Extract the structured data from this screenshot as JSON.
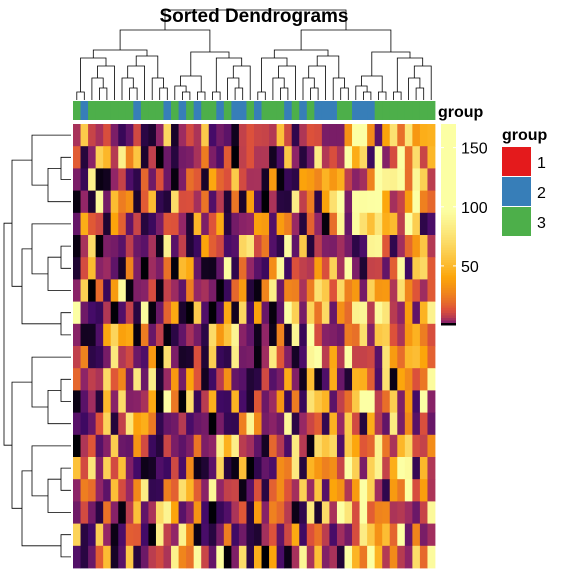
{
  "chart_data": {
    "type": "heatmap",
    "title": "Sorted Dendrograms",
    "n_rows": 20,
    "n_cols": 48,
    "column_groups": [
      3,
      2,
      3,
      3,
      3,
      3,
      3,
      3,
      2,
      3,
      3,
      3,
      2,
      3,
      2,
      3,
      2,
      3,
      3,
      2,
      3,
      2,
      2,
      3,
      2,
      3,
      3,
      3,
      2,
      3,
      2,
      3,
      2,
      2,
      2,
      3,
      3,
      2,
      2,
      2,
      3,
      3,
      3,
      3,
      3,
      3,
      3,
      3
    ],
    "annotation": {
      "title": "group",
      "levels": [
        {
          "label": "1",
          "color": "#E41A1C"
        },
        {
          "label": "2",
          "color": "#377EB8"
        },
        {
          "label": "3",
          "color": "#4DAF4A"
        }
      ]
    },
    "colorbar": {
      "title": "group",
      "ticks": [
        "150",
        "100",
        "50"
      ],
      "tick_values": [
        150,
        100,
        50
      ],
      "range": [
        0,
        170
      ],
      "palette": [
        "#000004",
        "#420A68",
        "#932667",
        "#DD513A",
        "#FCA50A",
        "#FCFFA4"
      ]
    },
    "heatmap_seed": 20240611,
    "group1_column_start": 31
  }
}
